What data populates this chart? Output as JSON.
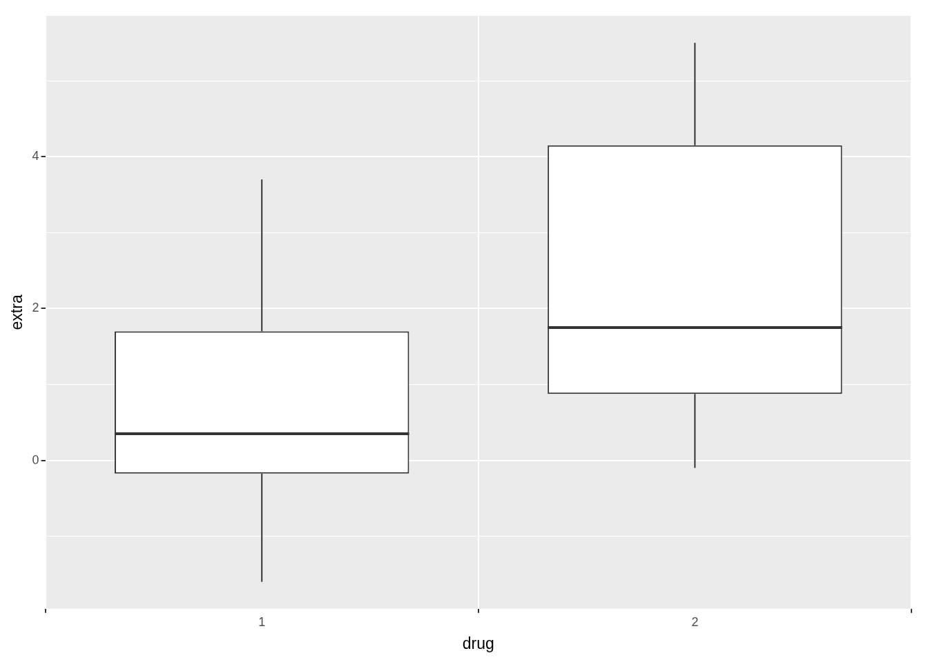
{
  "chart_data": {
    "type": "box",
    "xlabel": "drug",
    "ylabel": "extra",
    "categories": [
      "1",
      "2"
    ],
    "color": "#333333",
    "boxes": [
      {
        "low": -1.6,
        "q1": -0.175,
        "median": 0.35,
        "q3": 1.7,
        "high": 3.7
      },
      {
        "low": -0.1,
        "q1": 0.875,
        "median": 1.75,
        "q3": 4.15,
        "high": 5.5
      }
    ],
    "ylim": [
      -1.955,
      5.855
    ],
    "yticks": [
      {
        "value": -1,
        "label": null
      },
      0,
      {
        "value": 1,
        "label": null
      },
      2,
      {
        "value": 3,
        "label": null
      },
      4,
      {
        "value": 5,
        "label": null
      }
    ],
    "grid": true
  }
}
